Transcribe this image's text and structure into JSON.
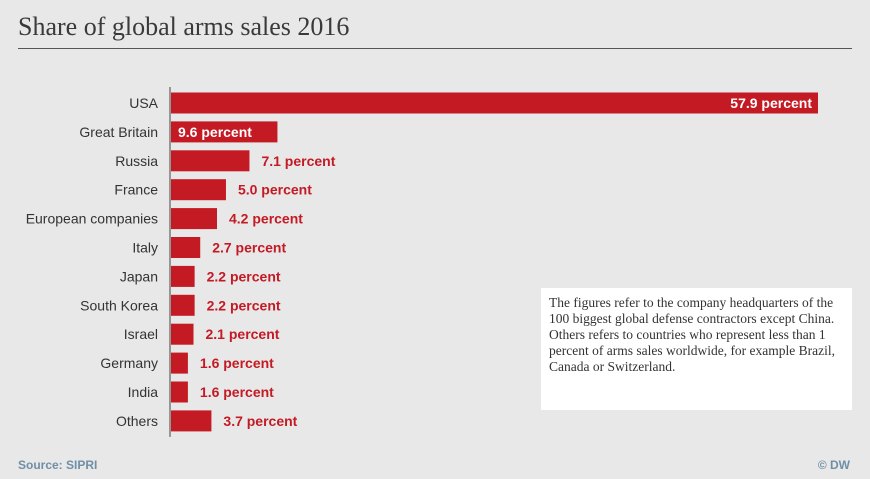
{
  "title": "Share of global arms sales 2016",
  "note": "The figures refer to the company headquarters of the 100 biggest global defense contractors except China. Others refers to countries who represent less than 1 percent of arms sales worldwide, for example Brazil, Canada or Switzerland.",
  "source": "Source: SIPRI",
  "credit": "© DW",
  "colors": {
    "bar": "#c41a24",
    "value_inside": "#ffffff",
    "value_outside": "#c41a24"
  },
  "chart_data": {
    "type": "bar",
    "orientation": "horizontal",
    "categories": [
      "USA",
      "Great Britain",
      "Russia",
      "France",
      "European companies",
      "Italy",
      "Japan",
      "South Korea",
      "Israel",
      "Germany",
      "India",
      "Others"
    ],
    "values": [
      57.9,
      9.6,
      7.1,
      5.0,
      4.2,
      2.7,
      2.2,
      2.2,
      2.1,
      1.6,
      1.6,
      3.7
    ],
    "value_labels": [
      "57.9 percent",
      "9.6 percent",
      "7.1 percent",
      "5.0 percent",
      "4.2 percent",
      "2.7 percent",
      "2.2 percent",
      "2.2 percent",
      "2.1 percent",
      "1.6 percent",
      "1.6 percent",
      "3.7 percent"
    ],
    "title": "Share of global arms sales 2016",
    "xlabel": "",
    "ylabel": "",
    "xlim": [
      0,
      57.9
    ],
    "grid": false,
    "legend": "none"
  }
}
